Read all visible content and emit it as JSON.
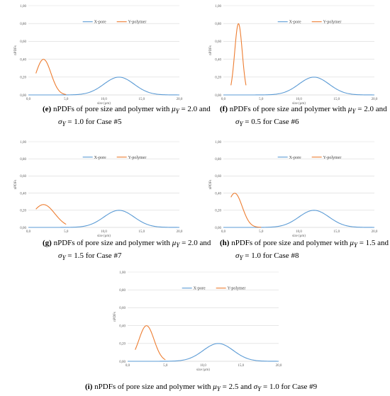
{
  "chart_data": [
    {
      "id": "e",
      "type": "line",
      "xlabel": "size (μm)",
      "ylabel": "nPDFs",
      "xlim": [
        0,
        20
      ],
      "ylim": [
        0,
        1
      ],
      "xticks": [
        "0,0",
        "5,0",
        "10,0",
        "15,0",
        "20,0"
      ],
      "yticks": [
        "0,00",
        "0,20",
        "0,40",
        "0,60",
        "0,80",
        "1,00"
      ],
      "grid": true,
      "legend": "top-center",
      "series": [
        {
          "name": "X-pore",
          "color": "#5b9bd5",
          "mu": 12.0,
          "sigma": 2.0,
          "xmin": 0,
          "xmax": 20
        },
        {
          "name": "Y-polymer",
          "color": "#ed7d31",
          "mu": 2.0,
          "sigma": 1.0,
          "xmin": 1,
          "xmax": 5
        }
      ],
      "caption": {
        "label": "(e)",
        "text": " nPDFs of pore size and polymer with  ",
        "mu_sym": "μ",
        "mu_sub": "Y",
        "mu_val": " = 2.0  and",
        "sigma_sym": "σ",
        "sigma_sub": "Y",
        "sigma_val": " = 1.0  for Case #5"
      }
    },
    {
      "id": "f",
      "type": "line",
      "xlabel": "size (μm)",
      "ylabel": "nPDFs",
      "xlim": [
        0,
        20
      ],
      "ylim": [
        0,
        1
      ],
      "xticks": [
        "0,0",
        "5,0",
        "10,0",
        "15,0",
        "20,0"
      ],
      "yticks": [
        "0,00",
        "0,20",
        "0,40",
        "0,60",
        "0,80",
        "1,00"
      ],
      "grid": true,
      "legend": "top-center",
      "series": [
        {
          "name": "X-pore",
          "color": "#5b9bd5",
          "mu": 12.0,
          "sigma": 2.0,
          "xmin": 0,
          "xmax": 20
        },
        {
          "name": "Y-polymer",
          "color": "#ed7d31",
          "mu": 2.0,
          "sigma": 0.5,
          "xmin": 1,
          "xmax": 3
        }
      ],
      "caption": {
        "label": "(f)",
        "text": " nPDFs of pore size and polymer with  ",
        "mu_sym": "μ",
        "mu_sub": "Y",
        "mu_val": " = 2.0  and",
        "sigma_sym": "σ",
        "sigma_sub": "Y",
        "sigma_val": " = 0.5    for Case #6"
      }
    },
    {
      "id": "g",
      "type": "line",
      "xlabel": "size (μm)",
      "ylabel": "nPDFs",
      "xlim": [
        0,
        20
      ],
      "ylim": [
        0,
        1
      ],
      "xticks": [
        "0,0",
        "5,0",
        "10,0",
        "15,0",
        "20,0"
      ],
      "yticks": [
        "0,00",
        "0,20",
        "0,40",
        "0,60",
        "0,80",
        "1,00"
      ],
      "grid": true,
      "legend": "top-center",
      "series": [
        {
          "name": "X-pore",
          "color": "#5b9bd5",
          "mu": 12.0,
          "sigma": 2.0,
          "xmin": 0,
          "xmax": 20
        },
        {
          "name": "Y-polymer",
          "color": "#ed7d31",
          "mu": 2.0,
          "sigma": 1.5,
          "xmin": 1,
          "xmax": 5
        }
      ],
      "caption": {
        "label": "(g)",
        "text": " nPDFs of pore size and polymer with  ",
        "mu_sym": "μ",
        "mu_sub": "Y",
        "mu_val": " = 2.0  and",
        "sigma_sym": "σ",
        "sigma_sub": "Y",
        "sigma_val": " = 1.5  for Case #7"
      }
    },
    {
      "id": "h",
      "type": "line",
      "xlabel": "size (μm)",
      "ylabel": "nPDFs",
      "xlim": [
        0,
        20
      ],
      "ylim": [
        0,
        1
      ],
      "xticks": [
        "0,0",
        "5,0",
        "10,0",
        "15,0",
        "20,0"
      ],
      "yticks": [
        "0,00",
        "0,20",
        "0,40",
        "0,60",
        "0,80",
        "1,00"
      ],
      "grid": true,
      "legend": "top-center",
      "series": [
        {
          "name": "X-pore",
          "color": "#5b9bd5",
          "mu": 12.0,
          "sigma": 2.0,
          "xmin": 0,
          "xmax": 20
        },
        {
          "name": "Y-polymer",
          "color": "#ed7d31",
          "mu": 1.5,
          "sigma": 1.0,
          "xmin": 1,
          "xmax": 5
        }
      ],
      "caption": {
        "label": "(h)",
        "text": " nPDFs of pore size and polymer with  ",
        "mu_sym": "μ",
        "mu_sub": "Y",
        "mu_val": " = 1.5  and",
        "sigma_sym": "σ",
        "sigma_sub": "Y",
        "sigma_val": " = 1.0  for Case #8"
      }
    },
    {
      "id": "i",
      "type": "line",
      "xlabel": "size (μm)",
      "ylabel": "nPDFs",
      "xlim": [
        0,
        20
      ],
      "ylim": [
        0,
        1
      ],
      "xticks": [
        "0,0",
        "5,0",
        "10,0",
        "15,0",
        "20,0"
      ],
      "yticks": [
        "0,00",
        "0,20",
        "0,40",
        "0,60",
        "0,80",
        "1,00"
      ],
      "grid": true,
      "legend": "top-center",
      "series": [
        {
          "name": "X-pore",
          "color": "#5b9bd5",
          "mu": 12.0,
          "sigma": 2.0,
          "xmin": 0,
          "xmax": 20
        },
        {
          "name": "Y-polymer",
          "color": "#ed7d31",
          "mu": 2.5,
          "sigma": 1.0,
          "xmin": 1,
          "xmax": 5
        }
      ],
      "caption": {
        "label": "(i)",
        "text": " nPDFs of pore size and polymer with  ",
        "mu_sym": "μ",
        "mu_sub": "Y",
        "mu_val": " = 2.5  and  ",
        "sigma_sym": "σ",
        "sigma_sub": "Y",
        "sigma_val": " = 1.0  for Case #9"
      }
    }
  ]
}
